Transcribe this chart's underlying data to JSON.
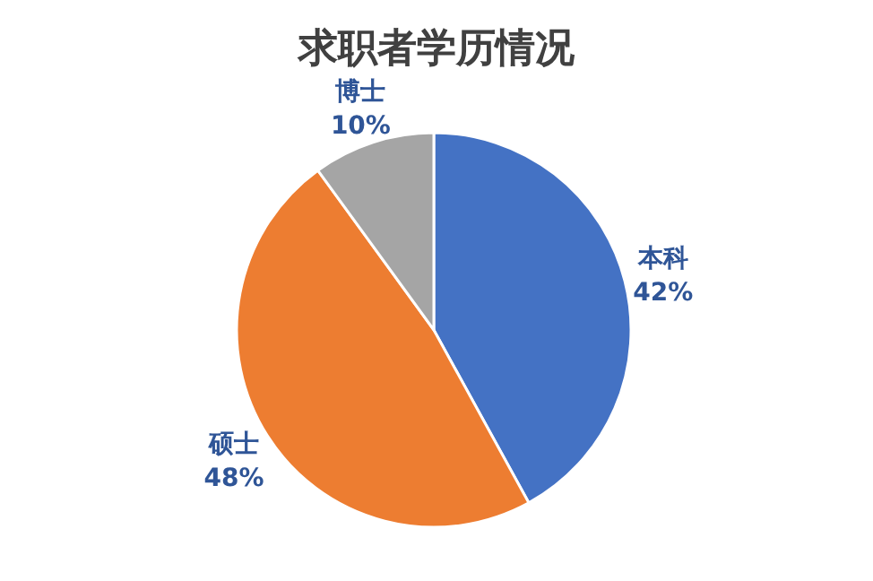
{
  "chart_data": {
    "type": "pie",
    "title": "求职者学历情况",
    "categories": [
      "本科",
      "硕士",
      "博士"
    ],
    "values": [
      42,
      48,
      10
    ],
    "value_labels": [
      "42%",
      "48%",
      "10%"
    ],
    "colors": [
      "#4472c4",
      "#ed7d31",
      "#a5a5a5"
    ]
  }
}
